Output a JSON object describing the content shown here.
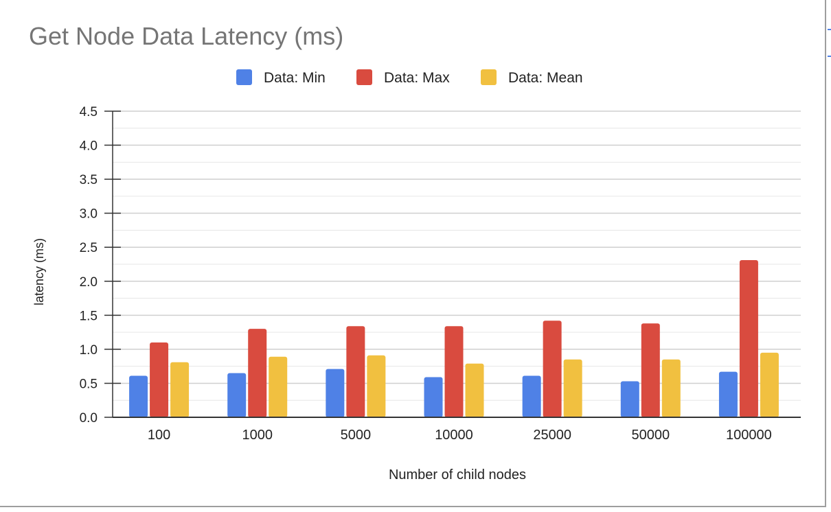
{
  "chart_data": {
    "type": "bar",
    "title": "Get Node Data Latency (ms)",
    "xlabel": "Number of child nodes",
    "ylabel": "latency (ms)",
    "categories": [
      "100",
      "1000",
      "5000",
      "10000",
      "25000",
      "50000",
      "100000"
    ],
    "series": [
      {
        "name": "Data: Min",
        "color": "#4f81e6",
        "values": [
          0.61,
          0.65,
          0.71,
          0.59,
          0.61,
          0.53,
          0.67
        ]
      },
      {
        "name": "Data: Max",
        "color": "#d94b3f",
        "values": [
          1.1,
          1.3,
          1.34,
          1.34,
          1.42,
          1.38,
          2.31
        ]
      },
      {
        "name": "Data: Mean",
        "color": "#f1c040",
        "values": [
          0.81,
          0.89,
          0.91,
          0.79,
          0.85,
          0.85,
          0.95
        ]
      }
    ],
    "ylim": [
      0,
      4.5
    ],
    "yticks": [
      "0.0",
      "0.5",
      "1.0",
      "1.5",
      "2.0",
      "2.5",
      "3.0",
      "3.5",
      "4.0",
      "4.5"
    ],
    "grid": true,
    "legend": "top"
  }
}
